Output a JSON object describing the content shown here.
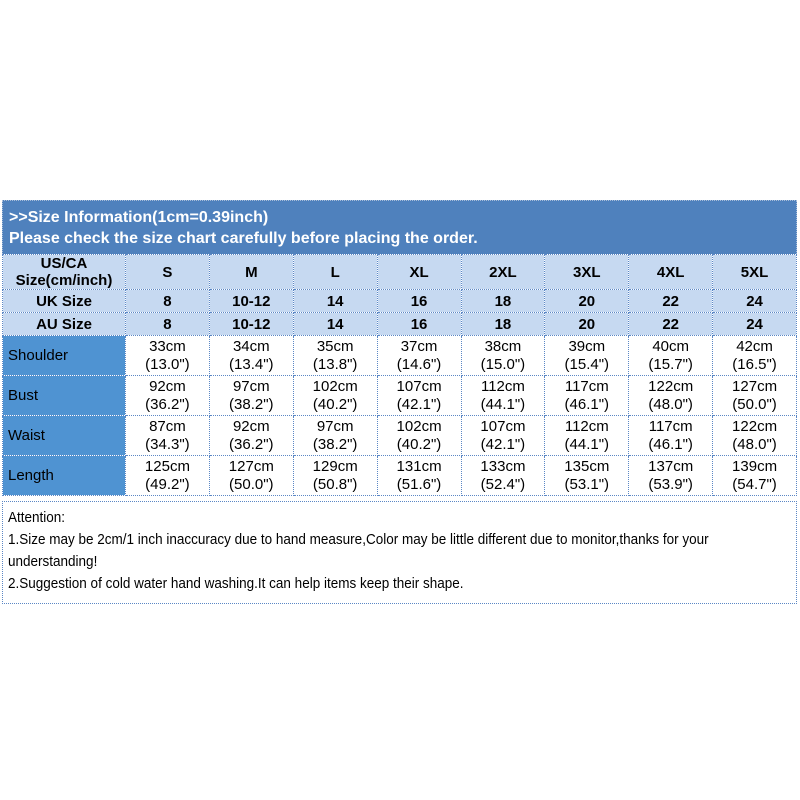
{
  "banner": {
    "title": ">>Size Information(1cm=0.39inch)",
    "subtitle": "Please check the size chart carefully before placing the order."
  },
  "size_chart": {
    "corner_header": {
      "line1": "US/CA",
      "line2": "Size(cm/inch)"
    },
    "size_labels": [
      "S",
      "M",
      "L",
      "XL",
      "2XL",
      "3XL",
      "4XL",
      "5XL"
    ],
    "conversion_rows": [
      {
        "label": "UK Size",
        "values": [
          "8",
          "10-12",
          "14",
          "16",
          "18",
          "20",
          "22",
          "24"
        ]
      },
      {
        "label": "AU Size",
        "values": [
          "8",
          "10-12",
          "14",
          "16",
          "18",
          "20",
          "22",
          "24"
        ]
      }
    ],
    "measurement_rows": [
      {
        "label": "Shoulder",
        "cm": [
          "33cm",
          "34cm",
          "35cm",
          "37cm",
          "38cm",
          "39cm",
          "40cm",
          "42cm"
        ],
        "inch": [
          "(13.0\")",
          "(13.4\")",
          "(13.8\")",
          "(14.6\")",
          "(15.0\")",
          "(15.4\")",
          "(15.7\")",
          "(16.5\")"
        ]
      },
      {
        "label": "Bust",
        "cm": [
          "92cm",
          "97cm",
          "102cm",
          "107cm",
          "112cm",
          "117cm",
          "122cm",
          "127cm"
        ],
        "inch": [
          "(36.2\")",
          "(38.2\")",
          "(40.2\")",
          "(42.1\")",
          "(44.1\")",
          "(46.1\")",
          "(48.0\")",
          "(50.0\")"
        ]
      },
      {
        "label": "Waist",
        "cm": [
          "87cm",
          "92cm",
          "97cm",
          "102cm",
          "107cm",
          "112cm",
          "117cm",
          "122cm"
        ],
        "inch": [
          "(34.3\")",
          "(36.2\")",
          "(38.2\")",
          "(40.2\")",
          "(42.1\")",
          "(44.1\")",
          "(46.1\")",
          "(48.0\")"
        ]
      },
      {
        "label": "Length",
        "cm": [
          "125cm",
          "127cm",
          "129cm",
          "131cm",
          "133cm",
          "135cm",
          "137cm",
          "139cm"
        ],
        "inch": [
          "(49.2\")",
          "(50.0\")",
          "(50.8\")",
          "(51.6\")",
          "(52.4\")",
          "(53.1\")",
          "(53.9\")",
          "(54.7\")"
        ]
      }
    ]
  },
  "attention": {
    "heading": "Attention:",
    "notes": [
      "1.Size may be 2cm/1 inch inaccuracy due to hand measure,Color may be little different due to monitor,thanks for your understanding!",
      "2.Suggestion of cold water hand washing.It can help items keep their shape."
    ]
  },
  "colors": {
    "banner_bg": "#4f81bd",
    "banner_text": "#ffffff",
    "header_row_bg": "#c6d9f1",
    "measurement_label_bg": "#4f93d2",
    "data_cell_bg": "#ffffff",
    "border": "#5b87c5",
    "table_text": "#000000"
  }
}
